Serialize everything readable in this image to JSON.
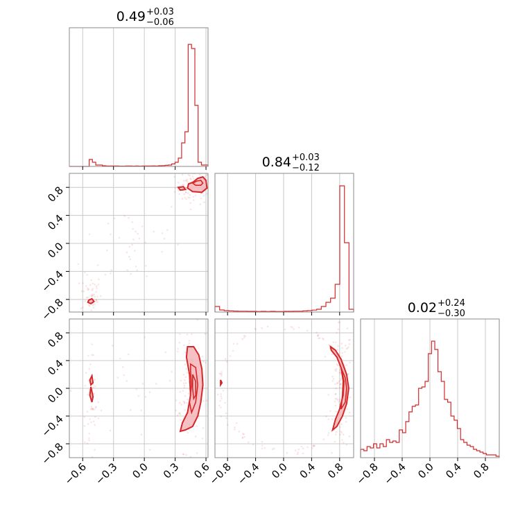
{
  "chart_data": {
    "type": "corner",
    "colors": {
      "series": "#d62728",
      "contour_fill": "#f4b6ba",
      "grid": "#c8c8c8",
      "frame": "#8a8a8a"
    },
    "grid": true,
    "parameters": [
      {
        "title_value": "0.49",
        "title_plus": "+0.03",
        "title_minus": "−0.06",
        "range": [
          -0.73,
          0.62
        ],
        "ticks": [
          -0.6,
          -0.3,
          0.0,
          0.3,
          0.6
        ],
        "tick_labels": [
          "−0.6",
          "−0.3",
          "0.0",
          "0.3",
          "0.6"
        ],
        "hist_edges": [
          -0.73,
          0.62
        ],
        "hist_counts": [
          0,
          0,
          0,
          0,
          0,
          0,
          0.05,
          0.03,
          0.01,
          0.01,
          0.005,
          0.003,
          0.003,
          0.003,
          0.003,
          0.002,
          0.002,
          0.003,
          0.003,
          0.002,
          0.003,
          0.002,
          0.003,
          0.003,
          0.003,
          0.004,
          0.003,
          0.005,
          0.006,
          0.008,
          0.01,
          0.018,
          0.03,
          0.06,
          0.17,
          0.25,
          0.88,
          0.85,
          0.44,
          0.03,
          0.01,
          0.01
        ]
      },
      {
        "title_value": "0.84",
        "title_plus": "+0.03",
        "title_minus": "−0.12",
        "range": [
          -0.98,
          1.0
        ],
        "ticks": [
          -0.8,
          -0.4,
          0.0,
          0.4,
          0.8
        ],
        "tick_labels": [
          "−0.8",
          "−0.4",
          "0.0",
          "0.4",
          "0.8"
        ],
        "hist_counts": [
          0.04,
          0.015,
          0.01,
          0.008,
          0.007,
          0.006,
          0.006,
          0.005,
          0.005,
          0.004,
          0.005,
          0.004,
          0.005,
          0.004,
          0.004,
          0.005,
          0.005,
          0.006,
          0.006,
          0.008,
          0.01,
          0.014,
          0.02,
          0.04,
          0.07,
          0.1,
          0.2,
          0.91,
          0.5,
          0.02
        ]
      },
      {
        "title_value": "0.02",
        "title_plus": "+0.24",
        "title_minus": "−0.30",
        "range": [
          -1.0,
          1.0
        ],
        "ticks": [
          -0.8,
          -0.4,
          0.0,
          0.4,
          0.8
        ],
        "tick_labels": [
          "−0.8",
          "−0.4",
          "0.0",
          "0.4",
          "0.8"
        ],
        "hist_counts": [
          0.06,
          0.05,
          0.08,
          0.07,
          0.1,
          0.07,
          0.1,
          0.08,
          0.13,
          0.11,
          0.12,
          0.11,
          0.2,
          0.18,
          0.26,
          0.33,
          0.37,
          0.38,
          0.5,
          0.51,
          0.55,
          0.75,
          0.84,
          0.78,
          0.62,
          0.55,
          0.42,
          0.4,
          0.3,
          0.27,
          0.21,
          0.13,
          0.11,
          0.09,
          0.08,
          0.06,
          0.05,
          0.04,
          0.03,
          0.02,
          0.02,
          0.02,
          0.01
        ]
      }
    ],
    "pairs": [
      {
        "row": 1,
        "col": 0,
        "contours": [
          {
            "points": [
              [
                0.43,
                0.85
              ],
              [
                0.47,
                0.87
              ],
              [
                0.52,
                0.93
              ],
              [
                0.57,
                0.95
              ],
              [
                0.6,
                0.9
              ],
              [
                0.61,
                0.79
              ],
              [
                0.56,
                0.73
              ],
              [
                0.47,
                0.74
              ],
              [
                0.42,
                0.79
              ]
            ],
            "filled": true
          },
          {
            "points": [
              [
                0.47,
                0.86
              ],
              [
                0.51,
                0.89
              ],
              [
                0.55,
                0.9
              ],
              [
                0.57,
                0.86
              ],
              [
                0.55,
                0.83
              ],
              [
                0.5,
                0.83
              ]
            ],
            "filled": false
          },
          {
            "points": [
              [
                0.33,
                0.8
              ],
              [
                0.38,
                0.81
              ],
              [
                0.4,
                0.77
              ],
              [
                0.35,
                0.76
              ]
            ],
            "filled": true
          },
          {
            "points": [
              [
                -0.54,
                -0.81
              ],
              [
                -0.51,
                -0.79
              ],
              [
                -0.49,
                -0.83
              ],
              [
                -0.52,
                -0.86
              ],
              [
                -0.55,
                -0.84
              ]
            ],
            "filled": true
          }
        ],
        "scatter_clusters": [
          {
            "cx": 0.48,
            "cy": 0.8,
            "sx": 0.09,
            "sy": 0.12,
            "n": 90
          },
          {
            "cx": -0.52,
            "cy": -0.72,
            "sx": 0.05,
            "sy": 0.14,
            "n": 45
          },
          {
            "cx": -0.1,
            "cy": 0.0,
            "sx": 0.25,
            "sy": 0.35,
            "n": 40
          }
        ]
      },
      {
        "row": 2,
        "col": 0,
        "contours": [
          {
            "points": [
              [
                0.42,
                0.6
              ],
              [
                0.48,
                0.6
              ],
              [
                0.53,
                0.48
              ],
              [
                0.56,
                0.28
              ],
              [
                0.57,
                0.05
              ],
              [
                0.55,
                -0.2
              ],
              [
                0.52,
                -0.4
              ],
              [
                0.47,
                -0.55
              ],
              [
                0.4,
                -0.6
              ],
              [
                0.35,
                -0.62
              ],
              [
                0.37,
                -0.5
              ],
              [
                0.42,
                -0.35
              ],
              [
                0.45,
                -0.1
              ],
              [
                0.44,
                0.2
              ],
              [
                0.41,
                0.45
              ]
            ],
            "filled": true
          },
          {
            "points": [
              [
                0.45,
                0.35
              ],
              [
                0.5,
                0.3
              ],
              [
                0.52,
                0.05
              ],
              [
                0.5,
                -0.2
              ],
              [
                0.46,
                -0.35
              ],
              [
                0.44,
                -0.2
              ],
              [
                0.46,
                0.05
              ],
              [
                0.45,
                0.25
              ]
            ],
            "filled": false
          },
          {
            "points": [
              [
                0.47,
                0.2
              ],
              [
                0.5,
                0.1
              ],
              [
                0.5,
                -0.1
              ],
              [
                0.48,
                -0.15
              ],
              [
                0.47,
                0.0
              ]
            ],
            "filled": false
          },
          {
            "points": [
              [
                -0.51,
                0.18
              ],
              [
                -0.5,
                0.08
              ],
              [
                -0.52,
                0.05
              ],
              [
                -0.53,
                0.12
              ]
            ],
            "filled": true
          },
          {
            "points": [
              [
                -0.52,
                0.02
              ],
              [
                -0.5,
                -0.12
              ],
              [
                -0.51,
                -0.2
              ],
              [
                -0.53,
                -0.1
              ]
            ],
            "filled": true
          }
        ],
        "scatter_clusters": [
          {
            "cx": 0.45,
            "cy": 0.0,
            "sx": 0.07,
            "sy": 0.45,
            "n": 120
          },
          {
            "cx": -0.52,
            "cy": -0.3,
            "sx": 0.04,
            "sy": 0.4,
            "n": 55
          },
          {
            "cx": 0.0,
            "cy": 0.0,
            "sx": 0.35,
            "sy": 0.6,
            "n": 30
          }
        ]
      },
      {
        "row": 2,
        "col": 1,
        "contours": [
          {
            "points": [
              [
                0.67,
                0.6
              ],
              [
                0.74,
                0.55
              ],
              [
                0.82,
                0.42
              ],
              [
                0.9,
                0.2
              ],
              [
                0.93,
                0.0
              ],
              [
                0.9,
                -0.22
              ],
              [
                0.84,
                -0.4
              ],
              [
                0.76,
                -0.55
              ],
              [
                0.7,
                -0.6
              ],
              [
                0.74,
                -0.45
              ],
              [
                0.8,
                -0.3
              ],
              [
                0.85,
                -0.1
              ],
              [
                0.86,
                0.1
              ],
              [
                0.82,
                0.3
              ],
              [
                0.76,
                0.45
              ],
              [
                0.68,
                0.55
              ]
            ],
            "filled": true
          },
          {
            "points": [
              [
                0.82,
                0.3
              ],
              [
                0.88,
                0.15
              ],
              [
                0.9,
                0.0
              ],
              [
                0.88,
                -0.2
              ],
              [
                0.82,
                -0.3
              ],
              [
                0.84,
                -0.1
              ],
              [
                0.85,
                0.1
              ]
            ],
            "filled": false
          },
          {
            "points": [
              [
                -0.9,
                0.12
              ],
              [
                -0.88,
                0.08
              ],
              [
                -0.9,
                0.05
              ]
            ],
            "filled": true
          }
        ],
        "scatter_clusters": [
          {
            "cx": 0.82,
            "cy": 0.0,
            "sx": 0.08,
            "sy": 0.45,
            "n": 120
          }
        ],
        "scatter_ring": {
          "cx": 0.0,
          "cy": 0.0,
          "r": 0.9,
          "n": 110
        }
      }
    ]
  }
}
